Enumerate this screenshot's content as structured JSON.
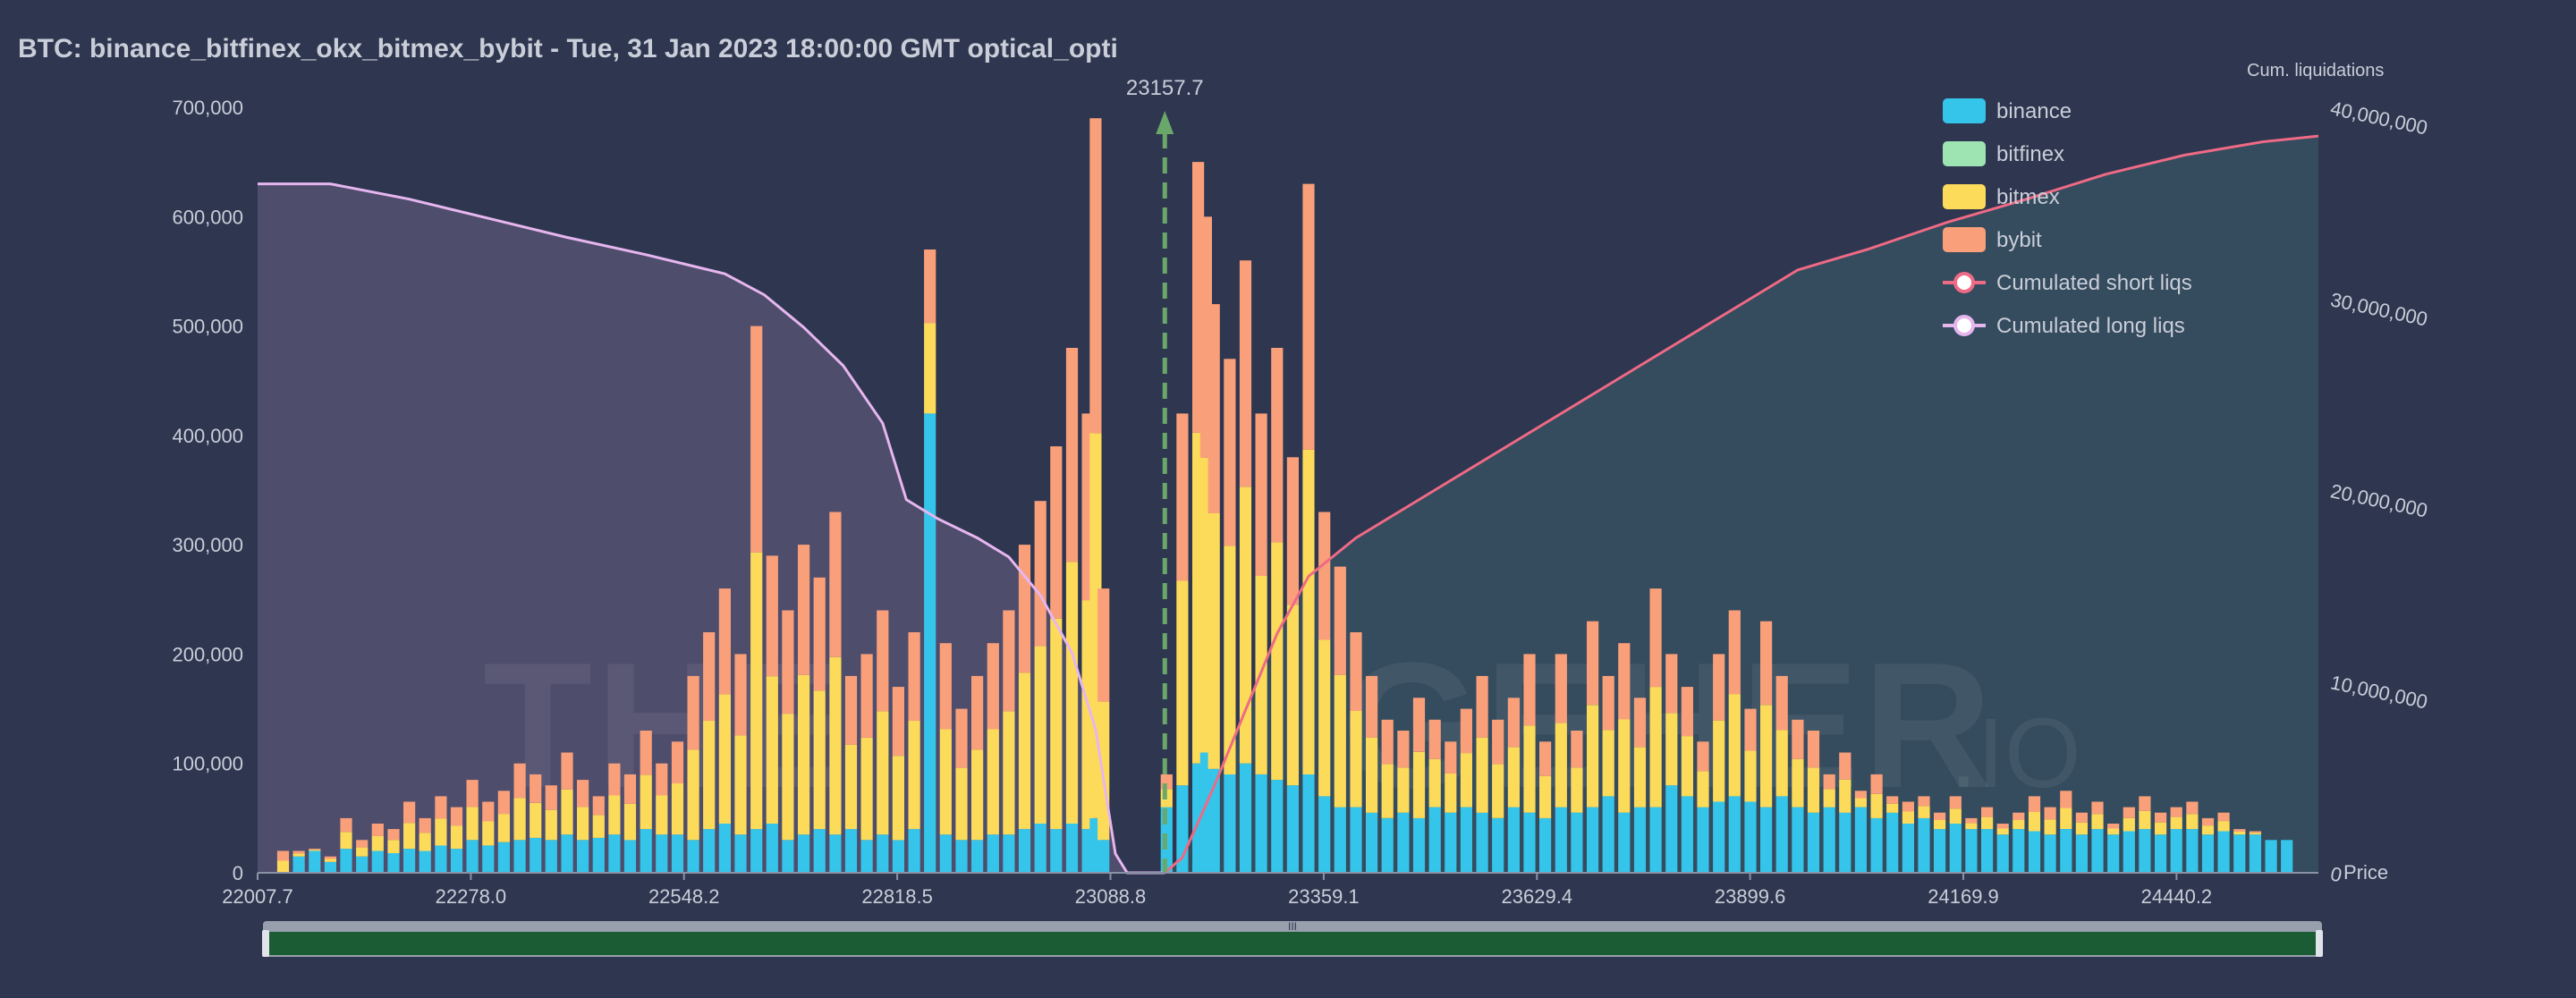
{
  "chart_data": {
    "type": "bar",
    "title": "BTC: binance_bitfinex_okx_bitmex_bybit - Tue, 31 Jan 2023 18:00:00 GMT optical_opti",
    "x_range": [
      22007.7,
      24620
    ],
    "x_ticks": [
      "22007.7",
      "22278.0",
      "22548.2",
      "22818.5",
      "23088.8",
      "23359.1",
      "23629.4",
      "23899.6",
      "24169.9",
      "24440.2"
    ],
    "y_left": {
      "range": [
        0,
        700000
      ],
      "ticks": [
        "0",
        "100,000",
        "200,000",
        "300,000",
        "400,000",
        "500,000",
        "600,000",
        "700,000"
      ]
    },
    "y_right": {
      "label": "Cum. liquidations",
      "range": [
        0,
        40000000
      ],
      "ticks": [
        "0",
        "10,000,000",
        "20,000,000",
        "30,000,000",
        "40,000,000"
      ]
    },
    "x_axis_end_label": "Price",
    "current_price": {
      "value": 23157.7,
      "label": "23157.7"
    },
    "legend_position": "top-right",
    "legend": [
      {
        "name": "binance",
        "color": "#35c4ea",
        "kind": "bar"
      },
      {
        "name": "bitfinex",
        "color": "#9ee3b2",
        "kind": "bar"
      },
      {
        "name": "bitmex",
        "color": "#fddb5a",
        "kind": "bar"
      },
      {
        "name": "bybit",
        "color": "#f9a07a",
        "kind": "bar"
      },
      {
        "name": "Cumulated short liqs",
        "color": "#ee6a85",
        "kind": "line"
      },
      {
        "name": "Cumulated long liqs",
        "color": "#e7b6ef",
        "kind": "line"
      }
    ],
    "stack_series": [
      "binance",
      "bitfinex",
      "bitmex",
      "bybit"
    ],
    "colors": {
      "binance": "#35c4ea",
      "bitfinex": "#9ee3b2",
      "bitmex": "#fddb5a",
      "bybit": "#f9a07a"
    },
    "bars": [
      [
        22040,
        0,
        20000
      ],
      [
        22060,
        15000,
        20000
      ],
      [
        22080,
        20000,
        22000
      ],
      [
        22100,
        10000,
        15000
      ],
      [
        22120,
        22000,
        50000
      ],
      [
        22140,
        15000,
        30000
      ],
      [
        22160,
        20000,
        45000
      ],
      [
        22180,
        18000,
        40000
      ],
      [
        22200,
        22000,
        65000
      ],
      [
        22220,
        20000,
        50000
      ],
      [
        22240,
        25000,
        70000
      ],
      [
        22260,
        22000,
        60000
      ],
      [
        22280,
        30000,
        85000
      ],
      [
        22300,
        25000,
        65000
      ],
      [
        22320,
        28000,
        75000
      ],
      [
        22340,
        30000,
        100000
      ],
      [
        22360,
        32000,
        90000
      ],
      [
        22380,
        30000,
        80000
      ],
      [
        22400,
        35000,
        110000
      ],
      [
        22420,
        30000,
        85000
      ],
      [
        22440,
        32000,
        70000
      ],
      [
        22460,
        35000,
        100000
      ],
      [
        22480,
        30000,
        90000
      ],
      [
        22500,
        40000,
        130000
      ],
      [
        22520,
        35000,
        100000
      ],
      [
        22540,
        35000,
        120000
      ],
      [
        22560,
        30000,
        180000
      ],
      [
        22580,
        40000,
        220000
      ],
      [
        22600,
        45000,
        260000
      ],
      [
        22620,
        35000,
        200000
      ],
      [
        22640,
        40000,
        500000
      ],
      [
        22660,
        45000,
        290000
      ],
      [
        22680,
        30000,
        240000
      ],
      [
        22700,
        35000,
        300000
      ],
      [
        22720,
        40000,
        270000
      ],
      [
        22740,
        35000,
        330000
      ],
      [
        22760,
        40000,
        180000
      ],
      [
        22780,
        30000,
        200000
      ],
      [
        22800,
        35000,
        240000
      ],
      [
        22820,
        30000,
        170000
      ],
      [
        22840,
        40000,
        220000
      ],
      [
        22860,
        420000,
        570000
      ],
      [
        22880,
        35000,
        210000
      ],
      [
        22900,
        30000,
        150000
      ],
      [
        22920,
        30000,
        180000
      ],
      [
        22940,
        35000,
        210000
      ],
      [
        22960,
        35000,
        240000
      ],
      [
        22980,
        40000,
        300000
      ],
      [
        23000,
        45000,
        340000
      ],
      [
        23020,
        40000,
        390000
      ],
      [
        23040,
        45000,
        480000
      ],
      [
        23060,
        40000,
        420000
      ],
      [
        23070,
        50000,
        690000
      ],
      [
        23080,
        30000,
        260000
      ],
      [
        23100,
        0,
        0
      ],
      [
        23120,
        0,
        0
      ],
      [
        23140,
        0,
        0
      ],
      [
        23160,
        60000,
        90000
      ],
      [
        23180,
        80000,
        420000
      ],
      [
        23200,
        100000,
        650000
      ],
      [
        23210,
        110000,
        600000
      ],
      [
        23220,
        95000,
        520000
      ],
      [
        23240,
        90000,
        470000
      ],
      [
        23260,
        100000,
        560000
      ],
      [
        23280,
        90000,
        420000
      ],
      [
        23300,
        85000,
        480000
      ],
      [
        23320,
        80000,
        380000
      ],
      [
        23340,
        90000,
        630000
      ],
      [
        23360,
        70000,
        330000
      ],
      [
        23380,
        60000,
        280000
      ],
      [
        23400,
        60000,
        220000
      ],
      [
        23420,
        55000,
        180000
      ],
      [
        23440,
        50000,
        140000
      ],
      [
        23460,
        55000,
        130000
      ],
      [
        23480,
        50000,
        160000
      ],
      [
        23500,
        60000,
        140000
      ],
      [
        23520,
        55000,
        120000
      ],
      [
        23540,
        60000,
        150000
      ],
      [
        23560,
        55000,
        180000
      ],
      [
        23580,
        50000,
        140000
      ],
      [
        23600,
        60000,
        160000
      ],
      [
        23620,
        55000,
        200000
      ],
      [
        23640,
        50000,
        120000
      ],
      [
        23660,
        60000,
        200000
      ],
      [
        23680,
        55000,
        130000
      ],
      [
        23700,
        60000,
        230000
      ],
      [
        23720,
        70000,
        180000
      ],
      [
        23740,
        55000,
        210000
      ],
      [
        23760,
        60000,
        160000
      ],
      [
        23780,
        60000,
        260000
      ],
      [
        23800,
        80000,
        200000
      ],
      [
        23820,
        70000,
        170000
      ],
      [
        23840,
        60000,
        120000
      ],
      [
        23860,
        65000,
        200000
      ],
      [
        23880,
        70000,
        240000
      ],
      [
        23900,
        65000,
        150000
      ],
      [
        23920,
        60000,
        230000
      ],
      [
        23940,
        70000,
        180000
      ],
      [
        23960,
        60000,
        140000
      ],
      [
        23980,
        55000,
        130000
      ],
      [
        24000,
        60000,
        90000
      ],
      [
        24020,
        55000,
        110000
      ],
      [
        24040,
        60000,
        75000
      ],
      [
        24060,
        50000,
        90000
      ],
      [
        24080,
        55000,
        70000
      ],
      [
        24100,
        45000,
        65000
      ],
      [
        24120,
        50000,
        70000
      ],
      [
        24140,
        40000,
        55000
      ],
      [
        24160,
        45000,
        70000
      ],
      [
        24180,
        40000,
        50000
      ],
      [
        24200,
        40000,
        60000
      ],
      [
        24220,
        35000,
        45000
      ],
      [
        24240,
        40000,
        55000
      ],
      [
        24260,
        38000,
        70000
      ],
      [
        24280,
        35000,
        60000
      ],
      [
        24300,
        40000,
        75000
      ],
      [
        24320,
        35000,
        55000
      ],
      [
        24340,
        40000,
        65000
      ],
      [
        24360,
        35000,
        45000
      ],
      [
        24380,
        38000,
        60000
      ],
      [
        24400,
        40000,
        70000
      ],
      [
        24420,
        35000,
        55000
      ],
      [
        24440,
        40000,
        60000
      ],
      [
        24460,
        40000,
        65000
      ],
      [
        24480,
        35000,
        50000
      ],
      [
        24500,
        38000,
        55000
      ],
      [
        24520,
        35000,
        40000
      ],
      [
        24540,
        35000,
        38000
      ],
      [
        24560,
        30000,
        30000
      ],
      [
        24580,
        30000,
        30000
      ]
    ],
    "long_liqs": [
      [
        22007.7,
        36000000
      ],
      [
        22100,
        36000000
      ],
      [
        22200,
        35200000
      ],
      [
        22300,
        34200000
      ],
      [
        22400,
        33200000
      ],
      [
        22500,
        32300000
      ],
      [
        22550,
        31800000
      ],
      [
        22600,
        31300000
      ],
      [
        22650,
        30200000
      ],
      [
        22700,
        28500000
      ],
      [
        22750,
        26500000
      ],
      [
        22800,
        23500000
      ],
      [
        22830,
        19500000
      ],
      [
        22870,
        18500000
      ],
      [
        22920,
        17500000
      ],
      [
        22960,
        16500000
      ],
      [
        23000,
        14500000
      ],
      [
        23040,
        11500000
      ],
      [
        23070,
        7500000
      ],
      [
        23095,
        1000000
      ],
      [
        23110,
        0
      ],
      [
        23157.7,
        0
      ]
    ],
    "short_liqs": [
      [
        23157.7,
        0
      ],
      [
        23180,
        800000
      ],
      [
        23220,
        4500000
      ],
      [
        23260,
        8500000
      ],
      [
        23300,
        12500000
      ],
      [
        23340,
        15500000
      ],
      [
        23400,
        17500000
      ],
      [
        23500,
        20000000
      ],
      [
        23600,
        22500000
      ],
      [
        23700,
        25000000
      ],
      [
        23800,
        27500000
      ],
      [
        23900,
        30000000
      ],
      [
        23960,
        31500000
      ],
      [
        24050,
        32600000
      ],
      [
        24150,
        34000000
      ],
      [
        24250,
        35200000
      ],
      [
        24350,
        36500000
      ],
      [
        24450,
        37500000
      ],
      [
        24550,
        38200000
      ],
      [
        24620,
        38500000
      ]
    ]
  },
  "watermark": {
    "left": "THE",
    "right": "GEHER",
    "suffix": ".IO"
  },
  "zoom_slider": {
    "handle_glyph": "III"
  }
}
